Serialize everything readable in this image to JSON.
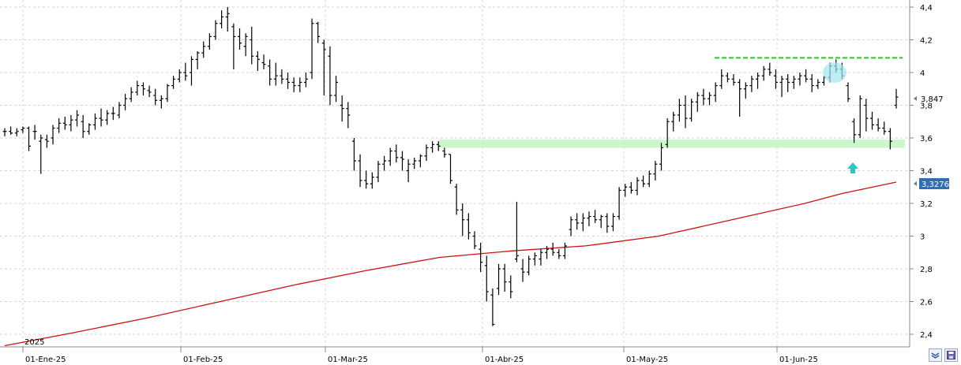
{
  "chart_data": {
    "type": "ohlc",
    "year_label": "2025",
    "x_ticks": [
      "01-Ene-25",
      "01-Feb-25",
      "01-Mar-25",
      "01-Abr-25",
      "01-May-25",
      "01-Jun-25"
    ],
    "y_ticks": [
      "4,4",
      "4,2",
      "4",
      "3,8",
      "3,6",
      "3,4",
      "3,2",
      "3",
      "2,8",
      "2,6",
      "2,4"
    ],
    "ylim": [
      2.32,
      4.45
    ],
    "grid": true,
    "last_price_label": "3,847",
    "moving_average_label": "3,3276",
    "resistance_level": 4.09,
    "support_zone": [
      3.54,
      3.59
    ],
    "series": [
      {
        "values": [
          [
            3.64,
            3.66,
            3.61,
            3.64
          ],
          [
            3.64,
            3.67,
            3.62,
            3.63
          ],
          [
            3.63,
            3.66,
            3.61,
            3.64
          ],
          [
            3.65,
            3.67,
            3.63,
            3.66
          ],
          [
            3.66,
            3.67,
            3.52,
            3.55
          ],
          [
            3.64,
            3.68,
            3.59,
            3.64
          ],
          [
            3.58,
            3.62,
            3.38,
            3.6
          ],
          [
            3.59,
            3.62,
            3.54,
            3.58
          ],
          [
            3.6,
            3.68,
            3.56,
            3.66
          ],
          [
            3.66,
            3.72,
            3.63,
            3.69
          ],
          [
            3.69,
            3.73,
            3.65,
            3.68
          ],
          [
            3.68,
            3.74,
            3.64,
            3.71
          ],
          [
            3.71,
            3.77,
            3.67,
            3.74
          ],
          [
            3.7,
            3.74,
            3.6,
            3.64
          ],
          [
            3.64,
            3.69,
            3.62,
            3.68
          ],
          [
            3.68,
            3.75,
            3.65,
            3.72
          ],
          [
            3.72,
            3.78,
            3.67,
            3.71
          ],
          [
            3.71,
            3.77,
            3.68,
            3.75
          ],
          [
            3.75,
            3.79,
            3.71,
            3.75
          ],
          [
            3.74,
            3.82,
            3.72,
            3.8
          ],
          [
            3.8,
            3.87,
            3.77,
            3.84
          ],
          [
            3.84,
            3.91,
            3.82,
            3.88
          ],
          [
            3.88,
            3.95,
            3.86,
            3.92
          ],
          [
            3.92,
            3.94,
            3.86,
            3.9
          ],
          [
            3.89,
            3.92,
            3.85,
            3.88
          ],
          [
            3.86,
            3.9,
            3.8,
            3.83
          ],
          [
            3.83,
            3.86,
            3.78,
            3.84
          ],
          [
            3.84,
            3.93,
            3.82,
            3.92
          ],
          [
            3.92,
            3.98,
            3.9,
            3.96
          ],
          [
            3.96,
            4.02,
            3.94,
            4.0
          ],
          [
            4.0,
            4.06,
            3.95,
            3.98
          ],
          [
            4.0,
            4.1,
            3.92,
            4.08
          ],
          [
            4.08,
            4.13,
            4.02,
            4.12
          ],
          [
            4.12,
            4.19,
            4.09,
            4.16
          ],
          [
            4.16,
            4.24,
            4.14,
            4.22
          ],
          [
            4.22,
            4.32,
            4.2,
            4.3
          ],
          [
            4.3,
            4.38,
            4.27,
            4.34
          ],
          [
            4.34,
            4.4,
            4.25,
            4.36
          ],
          [
            4.28,
            4.3,
            4.02,
            4.22
          ],
          [
            4.22,
            4.27,
            4.14,
            4.18
          ],
          [
            4.16,
            4.24,
            4.1,
            4.22
          ],
          [
            4.2,
            4.28,
            4.05,
            4.1
          ],
          [
            4.1,
            4.13,
            4.01,
            4.08
          ],
          [
            4.06,
            4.11,
            4.02,
            4.05
          ],
          [
            4.04,
            4.08,
            3.92,
            3.96
          ],
          [
            3.96,
            4.06,
            3.92,
            3.98
          ],
          [
            3.98,
            4.02,
            3.93,
            3.96
          ],
          [
            3.96,
            4.0,
            3.9,
            3.94
          ],
          [
            3.94,
            3.97,
            3.88,
            3.92
          ],
          [
            3.92,
            3.97,
            3.88,
            3.94
          ],
          [
            3.94,
            4.0,
            3.91,
            3.96
          ],
          [
            4.0,
            4.33,
            3.96,
            4.3
          ],
          [
            4.3,
            4.31,
            4.18,
            4.22
          ],
          [
            4.18,
            4.2,
            3.86,
            4.14
          ],
          [
            4.1,
            4.16,
            3.8,
            3.86
          ],
          [
            3.86,
            3.98,
            3.82,
            3.94
          ],
          [
            3.8,
            3.86,
            3.7,
            3.78
          ],
          [
            3.78,
            3.82,
            3.66,
            3.74
          ],
          [
            3.58,
            3.6,
            3.4,
            3.46
          ],
          [
            3.46,
            3.5,
            3.3,
            3.34
          ],
          [
            3.34,
            3.4,
            3.29,
            3.32
          ],
          [
            3.32,
            3.39,
            3.29,
            3.36
          ],
          [
            3.36,
            3.46,
            3.33,
            3.44
          ],
          [
            3.44,
            3.49,
            3.4,
            3.46
          ],
          [
            3.46,
            3.54,
            3.43,
            3.52
          ],
          [
            3.52,
            3.56,
            3.45,
            3.48
          ],
          [
            3.48,
            3.52,
            3.4,
            3.47
          ],
          [
            3.4,
            3.47,
            3.33,
            3.44
          ],
          [
            3.44,
            3.48,
            3.41,
            3.46
          ],
          [
            3.46,
            3.5,
            3.42,
            3.49
          ],
          [
            3.49,
            3.56,
            3.46,
            3.54
          ],
          [
            3.54,
            3.58,
            3.51,
            3.56
          ],
          [
            3.56,
            3.58,
            3.52,
            3.55
          ],
          [
            3.52,
            3.54,
            3.48,
            3.5
          ],
          [
            3.5,
            3.5,
            3.32,
            3.34
          ],
          [
            3.3,
            3.32,
            3.13,
            3.16
          ],
          [
            3.16,
            3.2,
            3.0,
            3.1
          ],
          [
            3.1,
            3.14,
            2.98,
            3.02
          ],
          [
            3.0,
            3.03,
            2.92,
            2.94
          ],
          [
            2.92,
            2.96,
            2.78,
            2.84
          ],
          [
            2.82,
            2.88,
            2.6,
            2.66
          ],
          [
            2.64,
            2.68,
            2.45,
            2.46
          ],
          [
            2.68,
            2.83,
            2.64,
            2.8
          ],
          [
            2.8,
            2.83,
            2.66,
            2.72
          ],
          [
            2.72,
            2.76,
            2.62,
            2.66
          ],
          [
            2.86,
            3.21,
            2.84,
            2.88
          ],
          [
            2.8,
            2.86,
            2.72,
            2.78
          ],
          [
            2.78,
            2.88,
            2.76,
            2.86
          ],
          [
            2.86,
            2.9,
            2.82,
            2.88
          ],
          [
            2.86,
            2.92,
            2.82,
            2.9
          ],
          [
            2.9,
            2.94,
            2.86,
            2.92
          ],
          [
            2.92,
            2.96,
            2.88,
            2.9
          ],
          [
            2.9,
            2.92,
            2.86,
            2.88
          ],
          [
            2.88,
            2.96,
            2.86,
            2.94
          ],
          [
            3.04,
            3.12,
            3.0,
            3.1
          ],
          [
            3.1,
            3.14,
            3.04,
            3.08
          ],
          [
            3.08,
            3.14,
            3.03,
            3.11
          ],
          [
            3.11,
            3.15,
            3.06,
            3.12
          ],
          [
            3.12,
            3.16,
            3.08,
            3.1
          ],
          [
            3.1,
            3.13,
            3.05,
            3.12
          ],
          [
            3.12,
            3.14,
            3.02,
            3.06
          ],
          [
            3.06,
            3.14,
            3.03,
            3.12
          ],
          [
            3.12,
            3.3,
            3.1,
            3.28
          ],
          [
            3.28,
            3.32,
            3.24,
            3.3
          ],
          [
            3.3,
            3.33,
            3.26,
            3.28
          ],
          [
            3.28,
            3.36,
            3.25,
            3.34
          ],
          [
            3.34,
            3.37,
            3.3,
            3.32
          ],
          [
            3.32,
            3.4,
            3.3,
            3.38
          ],
          [
            3.38,
            3.46,
            3.34,
            3.44
          ],
          [
            3.44,
            3.57,
            3.4,
            3.54
          ],
          [
            3.56,
            3.72,
            3.54,
            3.7
          ],
          [
            3.7,
            3.76,
            3.64,
            3.74
          ],
          [
            3.74,
            3.84,
            3.7,
            3.8
          ],
          [
            3.8,
            3.86,
            3.66,
            3.72
          ],
          [
            3.72,
            3.84,
            3.7,
            3.82
          ],
          [
            3.82,
            3.88,
            3.76,
            3.86
          ],
          [
            3.86,
            3.9,
            3.8,
            3.84
          ],
          [
            3.84,
            3.88,
            3.8,
            3.86
          ],
          [
            3.86,
            3.94,
            3.82,
            3.92
          ],
          [
            3.92,
            4.02,
            3.9,
            3.98
          ],
          [
            3.98,
            4.0,
            3.94,
            3.96
          ],
          [
            3.96,
            3.99,
            3.92,
            3.94
          ],
          [
            3.94,
            3.96,
            3.73,
            3.9
          ],
          [
            3.9,
            3.94,
            3.84,
            3.92
          ],
          [
            3.92,
            3.98,
            3.88,
            3.96
          ],
          [
            3.96,
            4.0,
            3.9,
            3.98
          ],
          [
            3.98,
            4.04,
            3.95,
            4.02
          ],
          [
            4.02,
            4.06,
            3.98,
            4.0
          ],
          [
            3.98,
            4.02,
            3.9,
            3.94
          ],
          [
            3.94,
            3.98,
            3.85,
            3.96
          ],
          [
            3.96,
            3.99,
            3.88,
            3.94
          ],
          [
            3.94,
            3.98,
            3.9,
            3.96
          ],
          [
            3.96,
            4.0,
            3.92,
            3.98
          ],
          [
            3.98,
            4.02,
            3.94,
            3.96
          ],
          [
            3.96,
            3.99,
            3.88,
            3.92
          ],
          [
            3.92,
            3.96,
            3.9,
            3.94
          ],
          [
            3.94,
            3.98,
            3.92,
            3.97
          ],
          [
            3.97,
            4.06,
            3.94,
            4.04
          ],
          [
            4.04,
            4.08,
            4.0,
            4.02
          ],
          [
            4.02,
            4.06,
            3.96,
            3.98
          ],
          [
            3.92,
            3.94,
            3.82,
            3.84
          ],
          [
            3.7,
            3.72,
            3.57,
            3.62
          ],
          [
            3.62,
            3.86,
            3.6,
            3.84
          ],
          [
            3.8,
            3.84,
            3.64,
            3.72
          ],
          [
            3.72,
            3.76,
            3.65,
            3.68
          ],
          [
            3.68,
            3.72,
            3.64,
            3.66
          ],
          [
            3.66,
            3.7,
            3.62,
            3.64
          ],
          [
            3.64,
            3.66,
            3.53,
            3.58
          ],
          [
            3.8,
            3.9,
            3.78,
            3.85
          ]
        ]
      }
    ],
    "moving_average": [
      [
        1,
        2.33
      ],
      [
        20,
        2.41
      ],
      [
        40,
        2.5
      ],
      [
        60,
        2.6
      ],
      [
        80,
        2.7
      ],
      [
        100,
        2.79
      ],
      [
        120,
        2.87
      ],
      [
        140,
        2.91
      ],
      [
        160,
        2.94
      ],
      [
        180,
        3.0
      ],
      [
        200,
        3.1
      ],
      [
        220,
        3.2
      ],
      [
        230,
        3.26
      ],
      [
        245,
        3.33
      ]
    ]
  },
  "controls": {
    "zoom_icon": "zoom-icon",
    "save_icon": "save-icon"
  }
}
